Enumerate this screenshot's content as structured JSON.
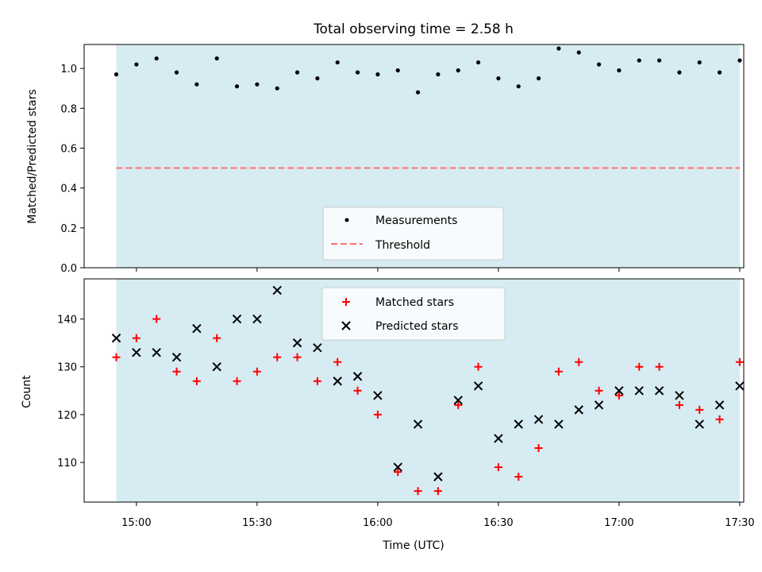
{
  "title": "Total observing time = 2.58 h",
  "colors": {
    "band": "#add8e6",
    "measure": "#000000",
    "threshold": "#ff7070",
    "matched": "#ff0000",
    "predicted": "#000000"
  },
  "chart_data": [
    {
      "type": "scatter",
      "ylabel": "Matched/Predicted stars",
      "ylim": [
        0,
        1.12
      ],
      "yticks": [
        0.0,
        0.2,
        0.4,
        0.6,
        0.8,
        1.0
      ],
      "ytick_labels": [
        "0.0",
        "0.2",
        "0.4",
        "0.6",
        "0.8",
        "1.0"
      ],
      "xlim": [
        "14:47",
        "17:31"
      ],
      "shaded_range": [
        "14:55",
        "17:30"
      ],
      "threshold": 0.5,
      "legend": {
        "placement": "lower center",
        "entries": [
          "Measurements",
          "Threshold"
        ]
      },
      "series": [
        {
          "name": "Measurements",
          "x": [
            "14:55",
            "15:00",
            "15:05",
            "15:10",
            "15:15",
            "15:20",
            "15:25",
            "15:30",
            "15:35",
            "15:40",
            "15:45",
            "15:50",
            "15:55",
            "16:00",
            "16:05",
            "16:10",
            "16:15",
            "16:20",
            "16:25",
            "16:30",
            "16:35",
            "16:40",
            "16:45",
            "16:50",
            "16:55",
            "17:00",
            "17:05",
            "17:10",
            "17:15",
            "17:20",
            "17:25",
            "17:30"
          ],
          "values": [
            0.97,
            1.02,
            1.05,
            0.98,
            0.92,
            1.05,
            0.91,
            0.92,
            0.9,
            0.98,
            0.95,
            1.03,
            0.98,
            0.97,
            0.99,
            0.88,
            0.97,
            0.99,
            1.03,
            0.95,
            0.91,
            0.95,
            1.1,
            1.08,
            1.02,
            0.99,
            1.04,
            1.04,
            0.98,
            1.03,
            0.98,
            1.04
          ]
        }
      ]
    },
    {
      "type": "scatter",
      "ylabel": "Count",
      "xlabel": "Time (UTC)",
      "ylim": [
        101.7,
        148.4
      ],
      "yticks": [
        110,
        120,
        130,
        140
      ],
      "ytick_labels": [
        "110",
        "120",
        "130",
        "140"
      ],
      "xlim": [
        "14:47",
        "17:31"
      ],
      "xticks": [
        "15:00",
        "15:30",
        "16:00",
        "16:30",
        "17:00",
        "17:30"
      ],
      "shaded_range": [
        "14:55",
        "17:30"
      ],
      "legend": {
        "placement": "upper center",
        "entries": [
          "Matched stars",
          "Predicted stars"
        ]
      },
      "series": [
        {
          "name": "Matched stars",
          "x": [
            "14:55",
            "15:00",
            "15:05",
            "15:10",
            "15:15",
            "15:20",
            "15:25",
            "15:30",
            "15:35",
            "15:40",
            "15:45",
            "15:50",
            "15:55",
            "16:00",
            "16:05",
            "16:10",
            "16:15",
            "16:20",
            "16:25",
            "16:30",
            "16:35",
            "16:40",
            "16:45",
            "16:50",
            "16:55",
            "17:00",
            "17:05",
            "17:10",
            "17:15",
            "17:20",
            "17:25",
            "17:30"
          ],
          "values": [
            132,
            136,
            140,
            129,
            127,
            136,
            127,
            129,
            132,
            132,
            127,
            131,
            125,
            120,
            108,
            104,
            104,
            122,
            130,
            109,
            107,
            113,
            129,
            131,
            125,
            124,
            130,
            130,
            122,
            121,
            119,
            131
          ]
        },
        {
          "name": "Predicted stars",
          "x": [
            "14:55",
            "15:00",
            "15:05",
            "15:10",
            "15:15",
            "15:20",
            "15:25",
            "15:30",
            "15:35",
            "15:40",
            "15:45",
            "15:50",
            "15:55",
            "16:00",
            "16:05",
            "16:10",
            "16:15",
            "16:20",
            "16:25",
            "16:30",
            "16:35",
            "16:40",
            "16:45",
            "16:50",
            "16:55",
            "17:00",
            "17:05",
            "17:10",
            "17:15",
            "17:20",
            "17:25",
            "17:30"
          ],
          "values": [
            136,
            133,
            133,
            132,
            138,
            130,
            140,
            140,
            146,
            135,
            134,
            127,
            128,
            124,
            109,
            118,
            107,
            123,
            126,
            115,
            118,
            119,
            118,
            121,
            122,
            125,
            125,
            125,
            124,
            118,
            122,
            126
          ]
        }
      ]
    }
  ]
}
